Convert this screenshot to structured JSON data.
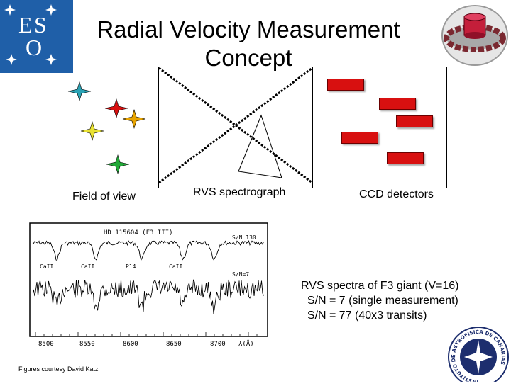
{
  "title": "Radial Velocity Measurement Concept",
  "logos": {
    "eso_letters": [
      "E",
      "S",
      "O"
    ],
    "iac_ring_text": "INSTITUTO DE ASTROFISICA DE CANARIAS"
  },
  "diagram": {
    "field_label": "Field of view",
    "spectrograph_label": "RVS spectrograph",
    "ccd_label": "CCD detectors",
    "star_colors": [
      "#2aa3b5",
      "#d81010",
      "#e8a400",
      "#e9e233",
      "#22a838"
    ],
    "ccd_color": "#d81010"
  },
  "spectrum": {
    "header": "HD 115604 (F3 III)",
    "sn_high": "S/N  130",
    "sn_low": "S/N=7",
    "line_ids": [
      "CaII",
      "CaII",
      "P14",
      "CaII"
    ],
    "x_ticks": [
      "8500",
      "8550",
      "8600",
      "8650",
      "8700"
    ],
    "x_unit": "λ(Å)"
  },
  "caption": {
    "line1": "RVS spectra of F3 giant (V=16)",
    "line2": "  S/N = 7 (single measurement)",
    "line3": "  S/N = 77 (40x3 transits)"
  },
  "credit": "Figures courtesy David Katz"
}
